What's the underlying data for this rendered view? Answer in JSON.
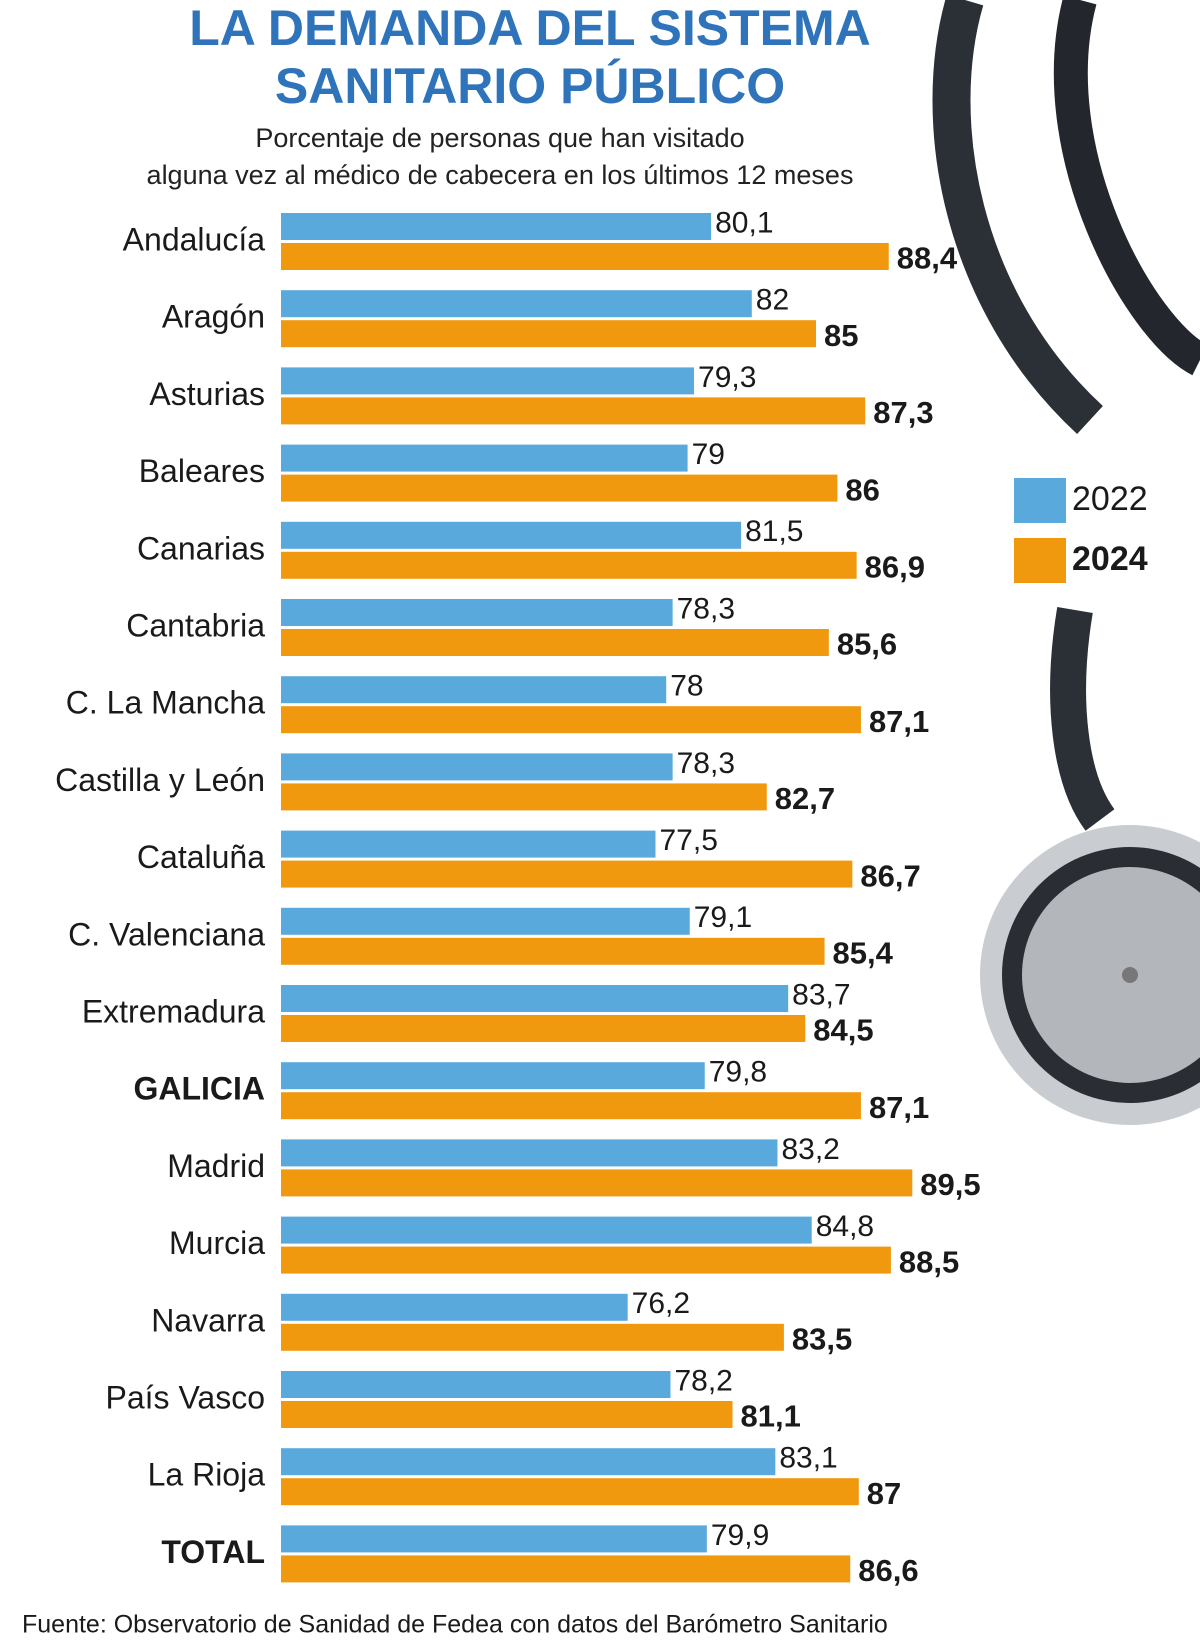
{
  "chart_data": {
    "type": "bar",
    "title": "LA DEMANDA DEL SISTEMA SANITARIO PÚBLICO",
    "subtitle": "Porcentaje de personas que han visitado alguna vez al médico de cabecera en los últimos 12 meses",
    "categories": [
      "Andalucía",
      "Aragón",
      "Asturias",
      "Baleares",
      "Canarias",
      "Cantabria",
      "C. La Mancha",
      "Castilla y León",
      "Cataluña",
      "C. Valenciana",
      "Extremadura",
      "GALICIA",
      "Madrid",
      "Murcia",
      "Navarra",
      "País Vasco",
      "La Rioja",
      "TOTAL"
    ],
    "series": [
      {
        "name": "2022",
        "color": "#5aa9dc",
        "values": [
          80.1,
          82,
          79.3,
          79,
          81.5,
          78.3,
          78,
          78.3,
          77.5,
          79.1,
          83.7,
          79.8,
          83.2,
          84.8,
          76.2,
          78.2,
          83.1,
          79.9
        ],
        "value_labels": [
          "80,1",
          "82",
          "79,3",
          "79",
          "81,5",
          "78,3",
          "78",
          "78,3",
          "77,5",
          "79,1",
          "83,7",
          "79,8",
          "83,2",
          "84,8",
          "76,2",
          "78,2",
          "83,1",
          "79,9"
        ]
      },
      {
        "name": "2024",
        "color": "#f0990f",
        "values": [
          88.4,
          85,
          87.3,
          86,
          86.9,
          85.6,
          87.1,
          82.7,
          86.7,
          85.4,
          84.5,
          87.1,
          89.5,
          88.5,
          83.5,
          81.1,
          87,
          86.6
        ],
        "value_labels": [
          "88,4",
          "85",
          "87,3",
          "86",
          "86,9",
          "85,6",
          "87,1",
          "82,7",
          "86,7",
          "85,4",
          "84,5",
          "87,1",
          "89,5",
          "88,5",
          "83,5",
          "81,1",
          "87",
          "86,6"
        ]
      }
    ],
    "xlim": [
      60,
      100
    ],
    "source": "Fuente:  Observatorio de Sanidad de Fedea con datos del Barómetro Sanitario"
  }
}
